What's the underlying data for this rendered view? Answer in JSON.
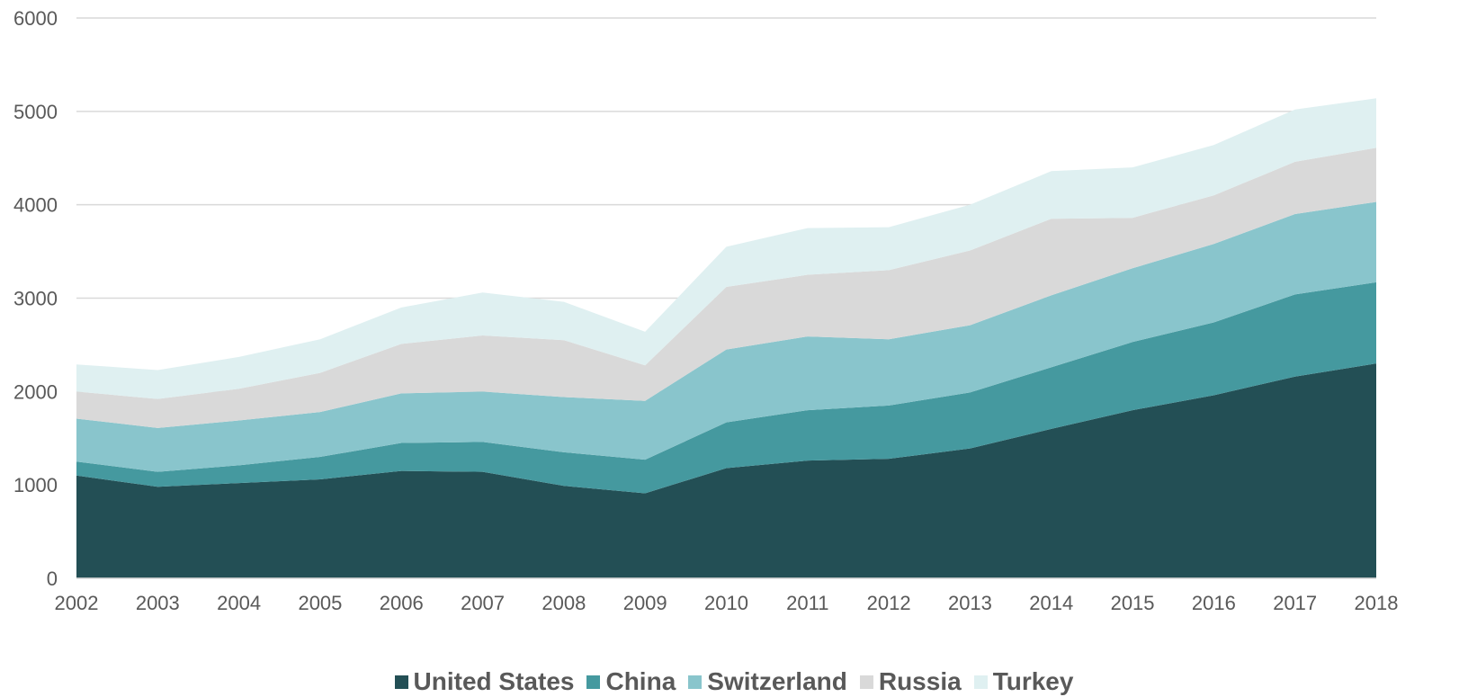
{
  "chart_data": {
    "type": "area",
    "stacked": true,
    "title": "",
    "xlabel": "",
    "ylabel": "",
    "x": [
      "2002",
      "2003",
      "2004",
      "2005",
      "2006",
      "2007",
      "2008",
      "2009",
      "2010",
      "2011",
      "2012",
      "2013",
      "2014",
      "2015",
      "2016",
      "2017",
      "2018"
    ],
    "ylim": [
      0,
      6000
    ],
    "yticks": [
      0,
      1000,
      2000,
      3000,
      4000,
      5000,
      6000
    ],
    "grid": true,
    "legend_position": "bottom",
    "series": [
      {
        "name": "United States",
        "color": "#234F55",
        "values": [
          1100,
          980,
          1020,
          1060,
          1150,
          1140,
          990,
          910,
          1180,
          1260,
          1280,
          1390,
          1600,
          1800,
          1960,
          2160,
          2300
        ]
      },
      {
        "name": "China",
        "color": "#45999F",
        "values": [
          150,
          160,
          190,
          240,
          300,
          320,
          360,
          360,
          490,
          540,
          570,
          600,
          660,
          730,
          780,
          880,
          870
        ]
      },
      {
        "name": "Switzerland",
        "color": "#89C5CC",
        "values": [
          460,
          470,
          480,
          480,
          530,
          540,
          590,
          630,
          780,
          790,
          710,
          720,
          770,
          790,
          840,
          860,
          860
        ]
      },
      {
        "name": "Russia",
        "color": "#D9D9D9",
        "values": [
          290,
          310,
          340,
          420,
          530,
          600,
          610,
          380,
          670,
          660,
          740,
          800,
          820,
          540,
          520,
          560,
          580
        ]
      },
      {
        "name": "Turkey",
        "color": "#DFF0F1",
        "values": [
          290,
          310,
          340,
          360,
          390,
          460,
          410,
          360,
          430,
          500,
          460,
          490,
          510,
          540,
          540,
          560,
          530
        ]
      }
    ]
  }
}
